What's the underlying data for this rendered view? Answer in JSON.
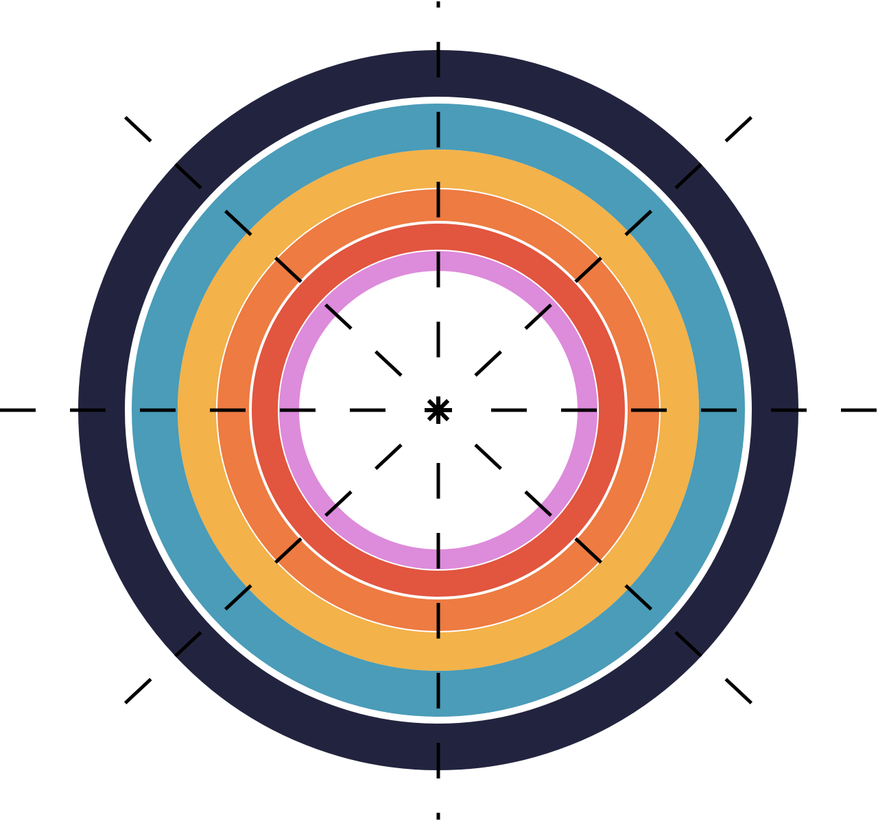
{
  "graphic": {
    "background": "#ffffff",
    "rings": [
      {
        "name": "navy",
        "color": "#22243f"
      },
      {
        "name": "teal",
        "color": "#4a9cb8"
      },
      {
        "name": "yellow",
        "color": "#f3b24a"
      },
      {
        "name": "orange",
        "color": "#ed7b42"
      },
      {
        "name": "red",
        "color": "#e2553f"
      },
      {
        "name": "pink",
        "color": "#dd8bdb"
      }
    ],
    "guide_color": "#000000",
    "center_icon": "asterisk-icon"
  }
}
